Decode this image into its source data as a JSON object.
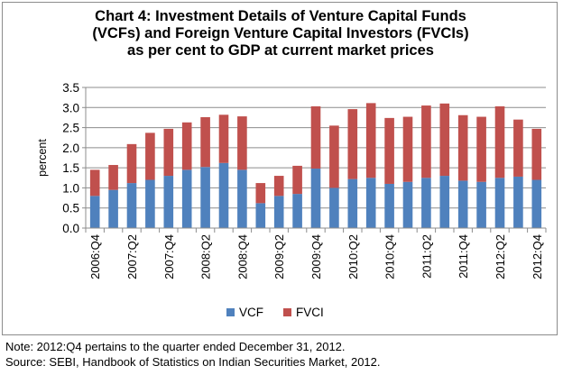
{
  "chart_data": {
    "type": "bar",
    "stacked": true,
    "title_lines": [
      "Chart  4: Investment Details of Venture Capital Funds",
      "(VCFs) and Foreign Venture Capital Investors (FVCIs)",
      "as per cent to GDP at current market prices"
    ],
    "ylabel": "percent",
    "xlabel": "",
    "ylim": [
      0,
      3.5
    ],
    "yticks": [
      "0.0",
      "0.5",
      "1.0",
      "1.5",
      "2.0",
      "2.5",
      "3.0",
      "3.5"
    ],
    "grid": "horizontal",
    "legend_position": "bottom",
    "categories": [
      "2006:Q4",
      "2007:Q1",
      "2007:Q2",
      "2007:Q3",
      "2007:Q4",
      "2008:Q1",
      "2008:Q2",
      "2008:Q3",
      "2008:Q4",
      "2009:Q1",
      "2009:Q2",
      "2009:Q3",
      "2009:Q4",
      "2010:Q1",
      "2010:Q2",
      "2010:Q3",
      "2010:Q4",
      "2011:Q1",
      "2011:Q2",
      "2011:Q3",
      "2011:Q4",
      "2012:Q1",
      "2012:Q2",
      "2012:Q3",
      "2012:Q4"
    ],
    "tick_labels": [
      "2006:Q4",
      "",
      "2007:Q2",
      "",
      "2007:Q4",
      "",
      "2008:Q2",
      "",
      "2008:Q4",
      "",
      "2009:Q2",
      "",
      "2009:Q4",
      "",
      "2010:Q2",
      "",
      "2010:Q4",
      "",
      "2011:Q2",
      "",
      "2011:Q4",
      "",
      "2012:Q2",
      "",
      "2012:Q4"
    ],
    "series": [
      {
        "name": "VCF",
        "color": "#4f81bd",
        "values": [
          0.8,
          0.95,
          1.12,
          1.2,
          1.3,
          1.45,
          1.52,
          1.62,
          1.45,
          0.62,
          0.8,
          0.85,
          1.48,
          1.0,
          1.22,
          1.25,
          1.1,
          1.15,
          1.25,
          1.3,
          1.18,
          1.15,
          1.25,
          1.28,
          1.2
        ]
      },
      {
        "name": "FVCI",
        "color": "#c0504d",
        "values": [
          0.65,
          0.62,
          0.97,
          1.17,
          1.17,
          1.18,
          1.24,
          1.2,
          1.33,
          0.5,
          0.5,
          0.7,
          1.55,
          1.55,
          1.74,
          1.86,
          1.64,
          1.62,
          1.8,
          1.8,
          1.63,
          1.62,
          1.78,
          1.42,
          1.27
        ]
      }
    ]
  },
  "notes": {
    "note": "Note: 2012:Q4 pertains to the quarter ended December 31, 2012.",
    "source": "Source: SEBI, Handbook of Statistics on Indian Securities Market, 2012."
  }
}
